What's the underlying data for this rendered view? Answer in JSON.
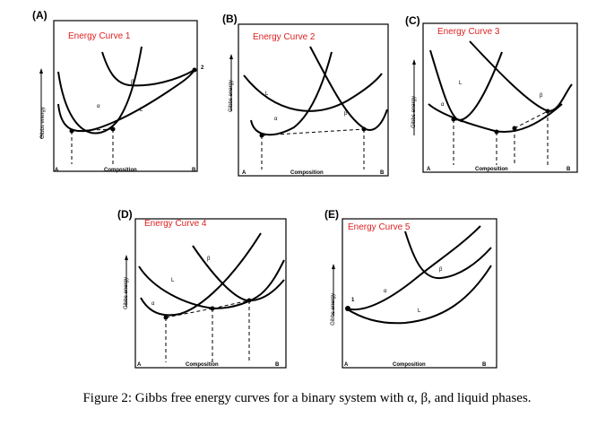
{
  "panels": [
    {
      "label": "(A)",
      "title": "Energy Curve 1",
      "ylabel": "Gibbs energy",
      "xlabel": "Composition",
      "xstart": "A",
      "xend": "B",
      "curves": [
        "L",
        "α",
        "β"
      ],
      "point_label": "2"
    },
    {
      "label": "(B)",
      "title": "Energy Curve 2",
      "ylabel": "Gibbs energy",
      "xlabel": "Composition",
      "xstart": "A",
      "xend": "B",
      "curves": [
        "L",
        "α",
        "β"
      ]
    },
    {
      "label": "(C)",
      "title": "Energy Curve 3",
      "ylabel": "Gibbs energy",
      "xlabel": "Composition",
      "xstart": "A",
      "xend": "B",
      "curves": [
        "L",
        "α",
        "β"
      ]
    },
    {
      "label": "(D)",
      "title": "Energy Curve 4",
      "ylabel": "Gibbs energy",
      "xlabel": "Composition",
      "xstart": "A",
      "xend": "B",
      "curves": [
        "L",
        "α",
        "β"
      ]
    },
    {
      "label": "(E)",
      "title": "Energy Curve 5",
      "ylabel": "Gibbs energy",
      "xlabel": "Composition",
      "xstart": "A",
      "xend": "B",
      "curves": [
        "L",
        "α",
        "β"
      ],
      "point_label": "1"
    }
  ],
  "caption": "Figure 2: Gibbs free energy curves for a binary system with α, β, and liquid phases."
}
